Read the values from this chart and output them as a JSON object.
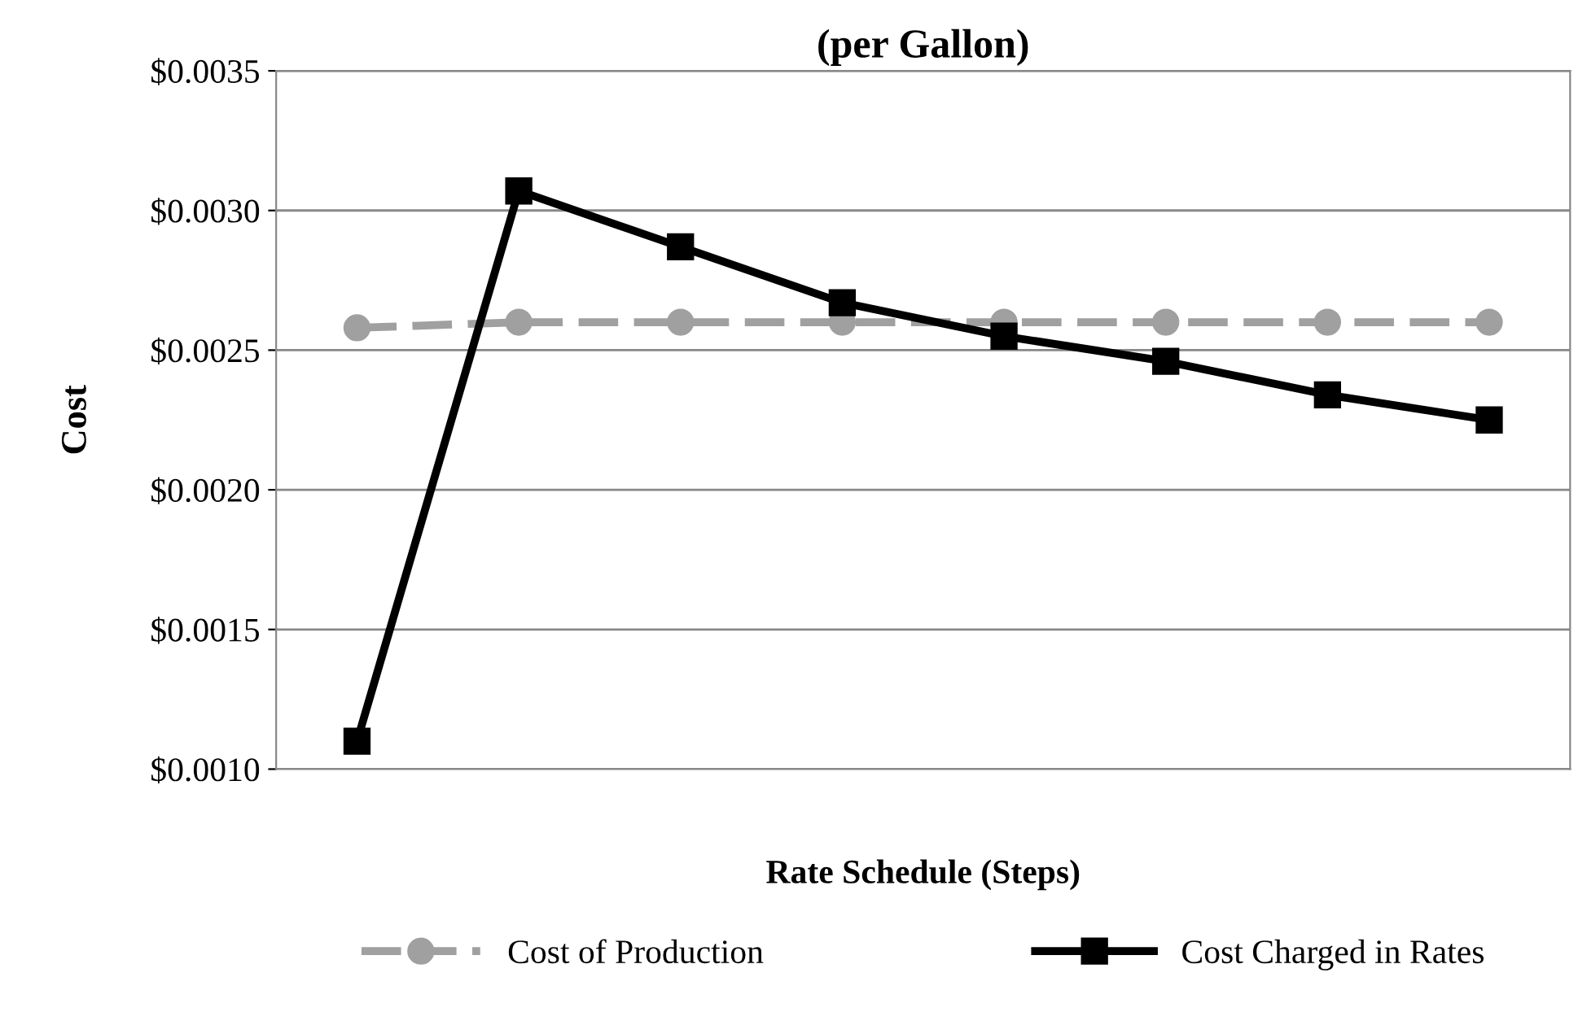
{
  "chart_data": {
    "type": "line",
    "title": "(per Gallon)",
    "xlabel": "Rate Schedule (Steps)",
    "ylabel": "Cost",
    "categories": [
      null,
      null,
      null,
      null,
      null,
      null,
      null,
      null
    ],
    "series": [
      {
        "name": "Cost of Production",
        "color": "#a0a0a0",
        "marker": "circle",
        "line_style": "dashed",
        "values": [
          0.00258,
          0.0026,
          0.0026,
          0.0026,
          0.0026,
          0.0026,
          0.0026,
          0.0026
        ]
      },
      {
        "name": "Cost Charged in Rates",
        "color": "#000000",
        "marker": "square",
        "line_style": "solid",
        "values": [
          0.0011,
          0.00307,
          0.00287,
          0.00267,
          0.00255,
          0.00246,
          0.00234,
          0.00225
        ]
      }
    ],
    "ylim": [
      0.001,
      0.0035
    ],
    "yticks": [
      {
        "value": 0.001,
        "label": "$0.0010"
      },
      {
        "value": 0.0015,
        "label": "$0.0015"
      },
      {
        "value": 0.002,
        "label": "$0.0020"
      },
      {
        "value": 0.0025,
        "label": "$0.0025"
      },
      {
        "value": 0.003,
        "label": "$0.0030"
      },
      {
        "value": 0.0035,
        "label": "$0.0035"
      }
    ],
    "grid": "y",
    "legend": "bottom",
    "tick_labels": "y"
  }
}
